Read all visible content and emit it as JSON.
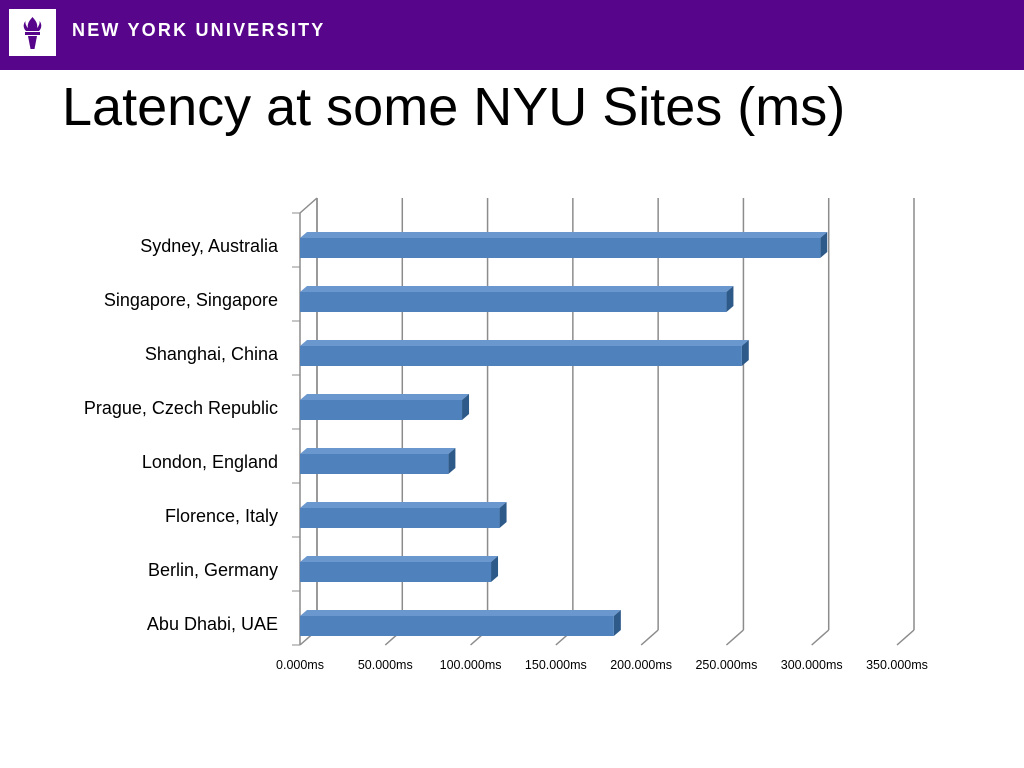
{
  "header": {
    "logo_icon": "nyu-torch-icon",
    "university_name": "NEW YORK UNIVERSITY",
    "brand_color": "#57068c"
  },
  "slide": {
    "title": "Latency at some NYU Sites (ms)"
  },
  "chart_data": {
    "type": "bar",
    "orientation": "horizontal",
    "style": "3d",
    "title": "",
    "xlabel": "",
    "ylabel": "",
    "categories": [
      "Sydney, Australia",
      "Singapore, Singapore",
      "Shanghai, China",
      "Prague, Czech Republic",
      "London, England",
      "Florence, Italy",
      "Berlin, Germany",
      "Abu Dhabi, UAE"
    ],
    "values": [
      305,
      250,
      259,
      95,
      87,
      117,
      112,
      184
    ],
    "xlim": [
      0,
      350
    ],
    "x_ticks": [
      "0.000ms",
      "50.000ms",
      "100.000ms",
      "150.000ms",
      "200.000ms",
      "250.000ms",
      "300.000ms",
      "350.000ms"
    ],
    "grid": true,
    "legend": "none",
    "bar_color": "#4f81bd"
  }
}
